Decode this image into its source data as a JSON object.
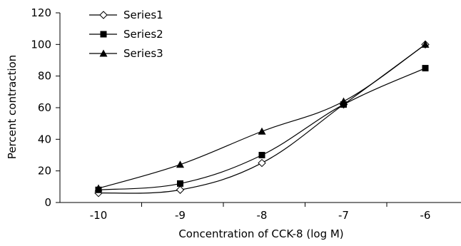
{
  "chart_data": {
    "type": "line",
    "xlabel": "Concentration of CCK-8 (log M)",
    "ylabel": "Percent contraction",
    "x": [
      -10,
      -9,
      -8,
      -7,
      -6
    ],
    "xticks": [
      "-10",
      "-9",
      "-8",
      "-7",
      "-6"
    ],
    "yticks": [
      "0",
      "20",
      "40",
      "60",
      "80",
      "100",
      "120"
    ],
    "ylim": [
      0,
      120
    ],
    "grid": false,
    "legend": "top-left",
    "series": [
      {
        "name": "Series1",
        "marker": "open-diamond",
        "values": [
          6,
          8,
          25,
          62,
          100
        ]
      },
      {
        "name": "Series2",
        "marker": "filled-square",
        "values": [
          8,
          12,
          30,
          62,
          85
        ]
      },
      {
        "name": "Series3",
        "marker": "filled-triangle",
        "values": [
          9,
          24,
          45,
          64,
          100
        ]
      }
    ]
  }
}
